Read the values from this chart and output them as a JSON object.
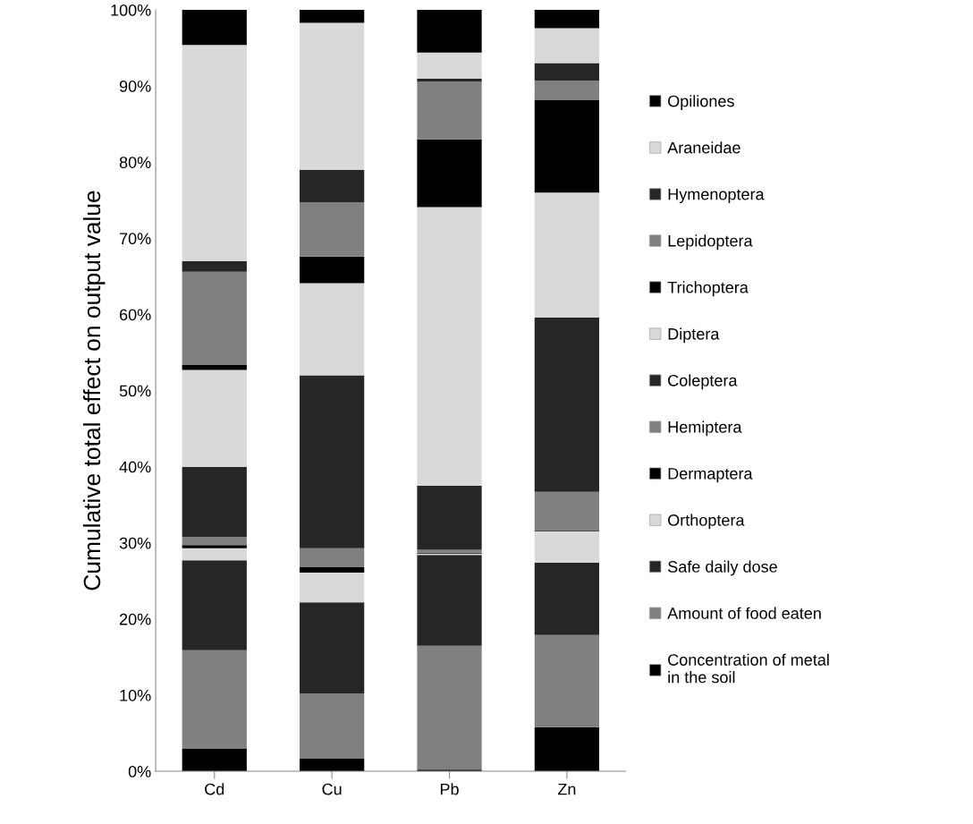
{
  "chart_data": {
    "type": "bar",
    "stacked": true,
    "ylabel": "Cumulative total effect on output value",
    "categories": [
      "Cd",
      "Cu",
      "Pb",
      "Zn"
    ],
    "series": [
      {
        "name": "Concentration of metal\nin the soil",
        "color": "#000000",
        "values": [
          3.0,
          1.7,
          0.2,
          5.8
        ]
      },
      {
        "name": "Amount of food eaten",
        "color": "#808080",
        "values": [
          12.9,
          8.5,
          16.3,
          12.1
        ]
      },
      {
        "name": "Safe daily dose",
        "color": "#262626",
        "values": [
          11.8,
          12.0,
          11.9,
          9.5
        ]
      },
      {
        "name": "Orthoptera",
        "color": "#d9d9d9",
        "values": [
          1.6,
          3.9,
          0.2,
          4.1
        ]
      },
      {
        "name": "Dermaptera",
        "color": "#000000",
        "values": [
          0.4,
          0.7,
          0.1,
          0.1
        ]
      },
      {
        "name": "Hemiptera",
        "color": "#808080",
        "values": [
          1.1,
          2.5,
          0.4,
          5.1
        ]
      },
      {
        "name": "Coleptera",
        "color": "#262626",
        "values": [
          9.2,
          22.7,
          8.4,
          22.9
        ]
      },
      {
        "name": "Diptera",
        "color": "#d9d9d9",
        "values": [
          12.7,
          12.1,
          36.6,
          16.4
        ]
      },
      {
        "name": "Trichoptera",
        "color": "#000000",
        "values": [
          0.7,
          3.5,
          8.9,
          12.2
        ]
      },
      {
        "name": "Lepidoptera",
        "color": "#808080",
        "values": [
          12.2,
          7.1,
          7.6,
          2.5
        ]
      },
      {
        "name": "Hymenoptera",
        "color": "#262626",
        "values": [
          1.4,
          4.3,
          0.4,
          2.3
        ]
      },
      {
        "name": "Araneidae",
        "color": "#d9d9d9",
        "values": [
          28.4,
          19.3,
          3.4,
          4.6
        ]
      },
      {
        "name": "Opiliones",
        "color": "#000000",
        "values": [
          4.6,
          1.7,
          5.6,
          2.4
        ]
      }
    ],
    "ylim": [
      0,
      100
    ],
    "yticks": [
      {
        "value": 0,
        "label": "0%"
      },
      {
        "value": 10,
        "label": "10%"
      },
      {
        "value": 20,
        "label": "20%"
      },
      {
        "value": 30,
        "label": "30%"
      },
      {
        "value": 40,
        "label": "40%"
      },
      {
        "value": 50,
        "label": "50%"
      },
      {
        "value": 60,
        "label": "60%"
      },
      {
        "value": 70,
        "label": "70%"
      },
      {
        "value": 80,
        "label": "80%"
      },
      {
        "value": 90,
        "label": "90%"
      },
      {
        "value": 100,
        "label": "100%"
      }
    ],
    "grid": false,
    "legend": "right"
  }
}
